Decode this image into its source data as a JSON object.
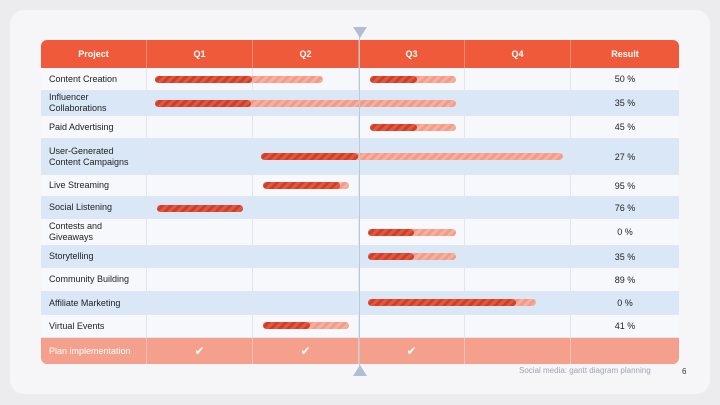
{
  "header": {
    "project": "Project",
    "q1": "Q1",
    "q2": "Q2",
    "q3": "Q3",
    "q4": "Q4",
    "result": "Result"
  },
  "rows": [
    {
      "name": "Content Creation",
      "result": "50 %"
    },
    {
      "name": "Influencer Collaborations",
      "result": "35 %"
    },
    {
      "name": "Paid Advertising",
      "result": "45 %"
    },
    {
      "name": "User-Generated Content Campaigns",
      "result": "27 %"
    },
    {
      "name": "Live Streaming",
      "result": "95 %"
    },
    {
      "name": "Social Listening",
      "result": "76 %"
    },
    {
      "name": "Contests and Giveaways",
      "result": "0 %"
    },
    {
      "name": "Storytelling",
      "result": "35 %"
    },
    {
      "name": "Community Building",
      "result": "89 %"
    },
    {
      "name": "Affiliate Marketing",
      "result": "0 %"
    },
    {
      "name": "Virtual Events",
      "result": "41 %"
    }
  ],
  "footer_row": {
    "label": "Plan implementation",
    "q1_check": "✔",
    "q2_check": "✔",
    "q3_check": "✔"
  },
  "footer_text": "Social media: gantt diagram planning",
  "page_number": "6",
  "colors": {
    "accent": "#ef5b3a",
    "bar_done": "#e8553a",
    "bar_remaining": "#f7b09f",
    "row_alt": "#d9e7f6"
  }
}
